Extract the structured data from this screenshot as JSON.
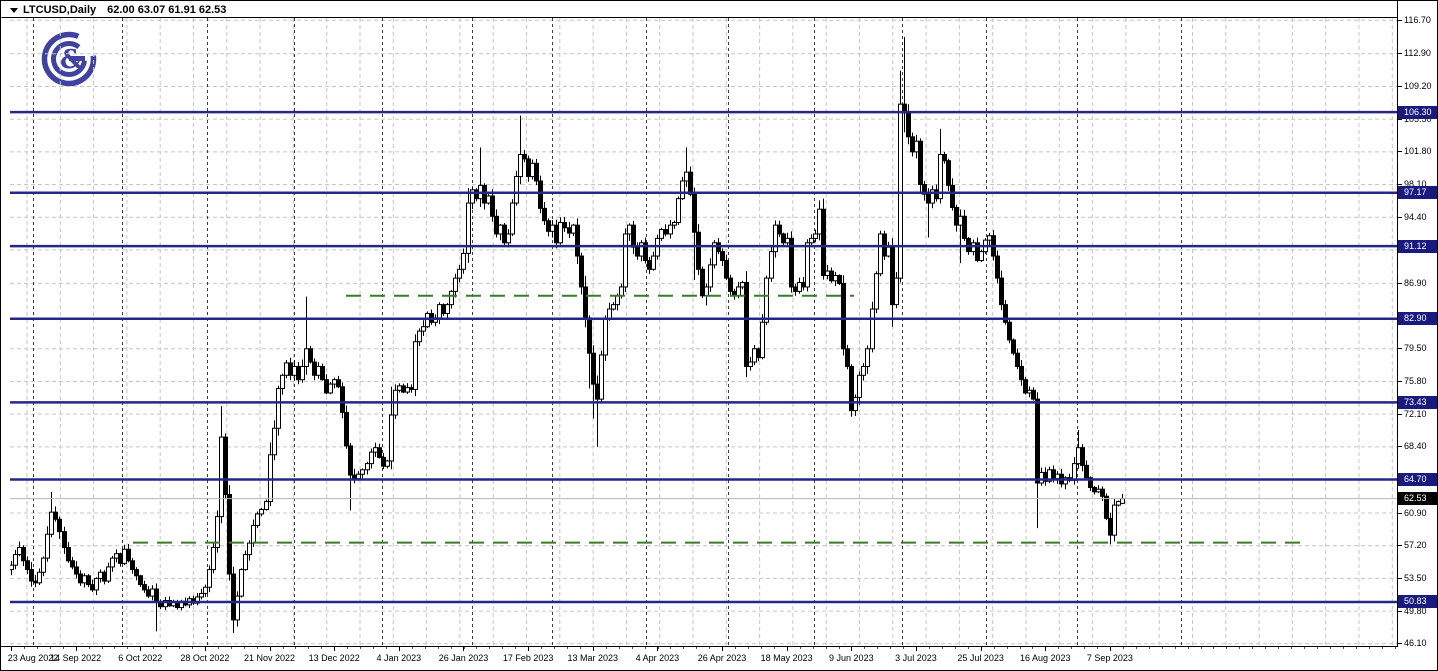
{
  "header": {
    "symbol_period": "LTCUSD,Daily",
    "ohlc_string": "62.00 63.07 61.91 62.53"
  },
  "logo": {
    "name": "gg-broker-logo",
    "color": "#3f42a0",
    "glyph": "&"
  },
  "colors": {
    "background": "#ffffff",
    "frame": "#000000",
    "grid": "#c6c6c6",
    "month_separator": "#3c3c3c",
    "level_line": "#26268a",
    "level_label_bg": "#1a1a7e",
    "current_label_bg": "#000000",
    "trend_green": "#3c7a28",
    "current_price_line": "#b4b4b4",
    "bull_fill": "#ffffff",
    "bear_fill": "#000000",
    "outline": "#000000"
  },
  "chart_data": {
    "type": "candlestick",
    "symbol": "LTCUSD",
    "timeframe": "Daily",
    "title": "LTCUSD,Daily",
    "current_bar": {
      "open": 62.0,
      "high": 63.07,
      "low": 61.91,
      "close": 62.53
    },
    "current_price": 62.53,
    "ylim": [
      44.5,
      118.5
    ],
    "grid": true,
    "price_axis_ticks": [
      116.7,
      112.9,
      109.2,
      105.5,
      101.8,
      98.1,
      94.4,
      90.7,
      86.9,
      79.5,
      75.8,
      72.1,
      68.4,
      60.9,
      57.2,
      53.5,
      49.8,
      46.1
    ],
    "date_axis_ticks": [
      "23 Aug 2022",
      "14 Sep 2022",
      "6 Oct 2022",
      "28 Oct 2022",
      "21 Nov 2022",
      "13 Dec 2022",
      "4 Jan 2023",
      "26 Jan 2023",
      "17 Feb 2023",
      "13 Mar 2023",
      "4 Apr 2023",
      "26 Apr 2023",
      "18 May 2023",
      "9 Jun 2023",
      "3 Jul 2023",
      "25 Jul 2023",
      "16 Aug 2023",
      "7 Sep 2023"
    ],
    "horizontal_levels": [
      106.3,
      97.17,
      91.12,
      82.9,
      73.43,
      64.7,
      50.83
    ],
    "dashed_trend_lines": [
      {
        "price": 85.5,
        "x1": 345,
        "x2": 853
      },
      {
        "price": 57.55,
        "x1": 132,
        "x2": 1300
      }
    ],
    "month_separators_x": [
      32,
      121,
      206,
      293,
      381,
      471,
      551,
      645,
      727,
      813,
      901,
      985,
      1076,
      1180
    ],
    "bars_close_vol": [
      [
        55.0,
        1.1
      ],
      [
        56.2,
        1.1
      ],
      [
        57.0,
        1.1
      ],
      [
        55.5,
        1.1
      ],
      [
        54.5,
        1.1
      ],
      [
        53.2,
        1.3
      ],
      [
        53.0,
        1.3
      ],
      [
        54.2,
        1.1
      ],
      [
        55.8,
        1.1
      ],
      [
        58.5,
        1.4
      ],
      [
        61.0,
        1.5
      ],
      [
        60.2,
        1.3
      ],
      [
        58.8,
        1.3
      ],
      [
        57.0,
        1.2
      ],
      [
        55.5,
        1.1
      ],
      [
        54.8,
        1.0
      ],
      [
        54.0,
        1.0
      ],
      [
        53.0,
        1.1
      ],
      [
        53.8,
        0.9
      ],
      [
        52.8,
        0.9
      ],
      [
        52.2,
        0.9
      ],
      [
        53.5,
        0.9
      ],
      [
        54.2,
        0.9
      ],
      [
        53.2,
        0.9
      ],
      [
        54.8,
        0.9
      ],
      [
        55.8,
        0.9
      ],
      [
        56.3,
        0.9
      ],
      [
        55.2,
        0.9
      ],
      [
        56.8,
        0.9
      ],
      [
        55.5,
        0.9
      ],
      [
        54.5,
        0.9
      ],
      [
        53.8,
        0.9
      ],
      [
        52.8,
        0.9
      ],
      [
        52.2,
        0.9
      ],
      [
        51.5,
        0.9
      ],
      [
        52.3,
        0.9
      ],
      [
        50.8,
        1.1
      ],
      [
        50.3,
        0.8
      ],
      [
        51.0,
        0.7
      ],
      [
        50.4,
        0.7
      ],
      [
        50.8,
        0.7
      ],
      [
        50.2,
        0.7
      ],
      [
        50.9,
        0.7
      ],
      [
        50.5,
        0.7
      ],
      [
        51.2,
        0.7
      ],
      [
        50.7,
        0.7
      ],
      [
        51.4,
        0.7
      ],
      [
        51.8,
        0.8
      ],
      [
        52.5,
        1.0
      ],
      [
        54.5,
        1.2
      ],
      [
        57.0,
        1.5
      ],
      [
        60.5,
        1.7
      ],
      [
        69.5,
        2.3
      ],
      [
        63.0,
        2.3
      ],
      [
        54.0,
        2.6
      ],
      [
        48.8,
        1.5
      ],
      [
        51.5,
        1.3
      ],
      [
        54.5,
        1.2
      ],
      [
        56.2,
        1.1
      ],
      [
        57.5,
        1.1
      ],
      [
        59.5,
        1.1
      ],
      [
        60.8,
        1.0
      ],
      [
        61.3,
        1.0
      ],
      [
        62.2,
        1.0
      ],
      [
        67.5,
        1.6
      ],
      [
        70.5,
        1.4
      ],
      [
        75.0,
        1.5
      ],
      [
        76.5,
        1.1
      ],
      [
        77.9,
        1.1
      ],
      [
        76.5,
        1.0
      ],
      [
        77.5,
        1.0
      ],
      [
        76.0,
        1.1
      ],
      [
        77.5,
        1.2
      ],
      [
        79.5,
        1.4
      ],
      [
        78.0,
        1.1
      ],
      [
        76.5,
        1.0
      ],
      [
        77.5,
        1.0
      ],
      [
        76.0,
        1.0
      ],
      [
        74.5,
        1.0
      ],
      [
        75.5,
        1.0
      ],
      [
        76.0,
        1.0
      ],
      [
        75.2,
        1.1
      ],
      [
        72.3,
        1.6
      ],
      [
        68.5,
        1.7
      ],
      [
        65.2,
        1.4
      ],
      [
        64.8,
        1.1
      ],
      [
        65.3,
        1.1
      ],
      [
        65.8,
        0.9
      ],
      [
        66.5,
        0.9
      ],
      [
        67.8,
        0.9
      ],
      [
        68.3,
        0.9
      ],
      [
        67.2,
        0.9
      ],
      [
        66.2,
        0.9
      ],
      [
        66.8,
        0.9
      ],
      [
        72.0,
        1.6
      ],
      [
        74.8,
        1.1
      ],
      [
        75.3,
        0.8
      ],
      [
        74.6,
        0.8
      ],
      [
        75.1,
        0.8
      ],
      [
        74.9,
        0.8
      ],
      [
        80.3,
        1.5
      ],
      [
        81.5,
        1.1
      ],
      [
        82.0,
        1.1
      ],
      [
        83.5,
        1.1
      ],
      [
        82.5,
        1.1
      ],
      [
        83.0,
        1.0
      ],
      [
        84.5,
        1.1
      ],
      [
        83.5,
        1.0
      ],
      [
        84.5,
        1.0
      ],
      [
        86.0,
        1.1
      ],
      [
        87.5,
        1.1
      ],
      [
        88.5,
        1.1
      ],
      [
        90.3,
        1.2
      ],
      [
        96.0,
        1.7
      ],
      [
        97.5,
        1.3
      ],
      [
        96.5,
        1.2
      ],
      [
        98.0,
        1.5
      ],
      [
        96.0,
        1.3
      ],
      [
        96.8,
        1.2
      ],
      [
        94.5,
        1.3
      ],
      [
        92.5,
        1.3
      ],
      [
        93.5,
        1.1
      ],
      [
        91.5,
        1.2
      ],
      [
        92.5,
        1.2
      ],
      [
        96.0,
        1.5
      ],
      [
        99.0,
        1.6
      ],
      [
        101.5,
        1.7
      ],
      [
        101.0,
        1.3
      ],
      [
        99.0,
        1.4
      ],
      [
        100.5,
        1.2
      ],
      [
        98.5,
        1.3
      ],
      [
        95.4,
        1.5
      ],
      [
        94.0,
        1.2
      ],
      [
        92.8,
        1.2
      ],
      [
        93.5,
        1.1
      ],
      [
        91.5,
        1.2
      ],
      [
        93.8,
        1.1
      ],
      [
        93.2,
        1.0
      ],
      [
        92.6,
        1.0
      ],
      [
        93.5,
        1.0
      ],
      [
        90.0,
        1.5
      ],
      [
        86.5,
        1.7
      ],
      [
        83.0,
        1.9
      ],
      [
        79.0,
        2.1
      ],
      [
        75.5,
        2.3
      ],
      [
        73.8,
        2.1
      ],
      [
        78.8,
        1.7
      ],
      [
        82.9,
        1.5
      ],
      [
        84.0,
        1.1
      ],
      [
        84.5,
        1.1
      ],
      [
        85.5,
        1.1
      ],
      [
        86.5,
        1.2
      ],
      [
        92.5,
        1.5
      ],
      [
        93.5,
        1.3
      ],
      [
        91.0,
        1.2
      ],
      [
        90.0,
        1.1
      ],
      [
        91.5,
        1.1
      ],
      [
        89.5,
        1.1
      ],
      [
        88.5,
        1.1
      ],
      [
        90.0,
        1.1
      ],
      [
        92.0,
        1.1
      ],
      [
        93.0,
        1.0
      ],
      [
        92.5,
        1.0
      ],
      [
        93.5,
        1.0
      ],
      [
        93.8,
        1.0
      ],
      [
        96.5,
        1.1
      ],
      [
        98.5,
        1.2
      ],
      [
        99.5,
        1.3
      ],
      [
        97.0,
        1.4
      ],
      [
        92.7,
        1.9
      ],
      [
        88.5,
        1.5
      ],
      [
        85.5,
        1.3
      ],
      [
        86.5,
        1.1
      ],
      [
        89.0,
        1.2
      ],
      [
        91.5,
        1.2
      ],
      [
        90.5,
        1.0
      ],
      [
        89.5,
        1.0
      ],
      [
        87.5,
        1.1
      ],
      [
        86.0,
        1.1
      ],
      [
        85.5,
        0.9
      ],
      [
        86.5,
        0.9
      ],
      [
        87.0,
        0.9
      ],
      [
        77.5,
        2.1
      ],
      [
        78.0,
        1.1
      ],
      [
        79.5,
        1.1
      ],
      [
        78.5,
        1.0
      ],
      [
        82.5,
        1.4
      ],
      [
        87.5,
        1.5
      ],
      [
        90.5,
        1.3
      ],
      [
        93.5,
        1.2
      ],
      [
        92.5,
        1.0
      ],
      [
        91.5,
        1.0
      ],
      [
        92.0,
        1.0
      ],
      [
        86.5,
        1.5
      ],
      [
        86.0,
        1.0
      ],
      [
        87.0,
        1.0
      ],
      [
        86.5,
        1.0
      ],
      [
        91.5,
        1.3
      ],
      [
        92.0,
        1.0
      ],
      [
        92.5,
        1.0
      ],
      [
        95.3,
        1.3
      ],
      [
        87.8,
        1.9
      ],
      [
        88.3,
        1.1
      ],
      [
        87.2,
        1.1
      ],
      [
        87.8,
        1.0
      ],
      [
        86.9,
        1.0
      ],
      [
        79.5,
        1.7
      ],
      [
        77.5,
        1.3
      ],
      [
        72.5,
        1.7
      ],
      [
        74.0,
        1.3
      ],
      [
        76.5,
        1.3
      ],
      [
        77.5,
        1.2
      ],
      [
        79.5,
        1.3
      ],
      [
        84.0,
        1.5
      ],
      [
        88.0,
        1.5
      ],
      [
        92.5,
        1.3
      ],
      [
        90.0,
        1.2
      ],
      [
        91.0,
        1.1
      ],
      [
        84.5,
        1.7
      ],
      [
        87.5,
        1.3
      ],
      [
        107.2,
        2.6
      ],
      [
        106.2,
        2.8
      ],
      [
        103.5,
        1.9
      ],
      [
        101.8,
        1.7
      ],
      [
        103.0,
        1.5
      ],
      [
        98.1,
        1.7
      ],
      [
        97.0,
        1.3
      ],
      [
        96.0,
        1.5
      ],
      [
        97.5,
        1.1
      ],
      [
        96.5,
        1.1
      ],
      [
        101.5,
        1.7
      ],
      [
        100.8,
        1.3
      ],
      [
        98.0,
        1.3
      ],
      [
        95.5,
        1.3
      ],
      [
        93.5,
        1.3
      ],
      [
        94.5,
        1.5
      ],
      [
        92.0,
        1.1
      ],
      [
        90.5,
        1.1
      ],
      [
        91.5,
        1.0
      ],
      [
        89.5,
        1.0
      ],
      [
        90.5,
        1.0
      ],
      [
        91.8,
        1.0
      ],
      [
        92.3,
        1.1
      ],
      [
        90.0,
        1.1
      ],
      [
        87.5,
        1.3
      ],
      [
        84.5,
        1.3
      ],
      [
        82.5,
        1.1
      ],
      [
        80.5,
        1.1
      ],
      [
        79.0,
        1.1
      ],
      [
        77.5,
        1.1
      ],
      [
        76.0,
        1.1
      ],
      [
        74.5,
        1.0
      ],
      [
        74.8,
        1.0
      ],
      [
        73.8,
        1.0
      ],
      [
        64.3,
        2.4
      ],
      [
        65.5,
        1.3
      ],
      [
        64.5,
        1.1
      ],
      [
        65.8,
        0.9
      ],
      [
        64.8,
        0.9
      ],
      [
        65.3,
        0.9
      ],
      [
        64.2,
        0.9
      ],
      [
        64.9,
        0.9
      ],
      [
        64.6,
        0.9
      ],
      [
        66.5,
        1.1
      ],
      [
        68.3,
        1.3
      ],
      [
        66.3,
        1.1
      ],
      [
        64.9,
        1.1
      ],
      [
        63.8,
        0.9
      ],
      [
        63.3,
        0.8
      ],
      [
        63.6,
        0.8
      ],
      [
        62.8,
        0.8
      ],
      [
        60.3,
        1.1
      ],
      [
        58.4,
        1.1
      ],
      [
        61.8,
        1.3
      ],
      [
        62.2,
        0.7
      ],
      [
        62.53,
        0.5
      ]
    ],
    "wick_overrides": {
      "10": {
        "h": 63.3
      },
      "36": {
        "l": 47.5
      },
      "52": {
        "h": 73.0
      },
      "55": {
        "l": 47.3
      },
      "64": {
        "h": 68.9
      },
      "73": {
        "h": 85.4
      },
      "84": {
        "l": 61.2
      },
      "94": {
        "h": 75.2
      },
      "113": {
        "h": 97.7
      },
      "116": {
        "h": 102.3
      },
      "126": {
        "h": 105.9
      },
      "143": {
        "l": 75.0
      },
      "144": {
        "l": 71.6
      },
      "145": {
        "l": 68.4
      },
      "167": {
        "h": 102.3
      },
      "169": {
        "l": 87.3
      },
      "172": {
        "l": 84.4
      },
      "200": {
        "h": 96.3
      },
      "208": {
        "l": 71.8
      },
      "218": {
        "l": 82.0
      },
      "220": {
        "h": 111.0
      },
      "221": {
        "h": 114.8,
        "l": 104.0
      },
      "227": {
        "l": 92.1
      },
      "230": {
        "h": 104.4
      },
      "235": {
        "l": 89.2
      },
      "254": {
        "l": 59.2
      },
      "264": {
        "h": 70.3
      },
      "272": {
        "l": 57.35
      },
      "275": {
        "h": 63.07,
        "l": 61.91
      }
    }
  }
}
